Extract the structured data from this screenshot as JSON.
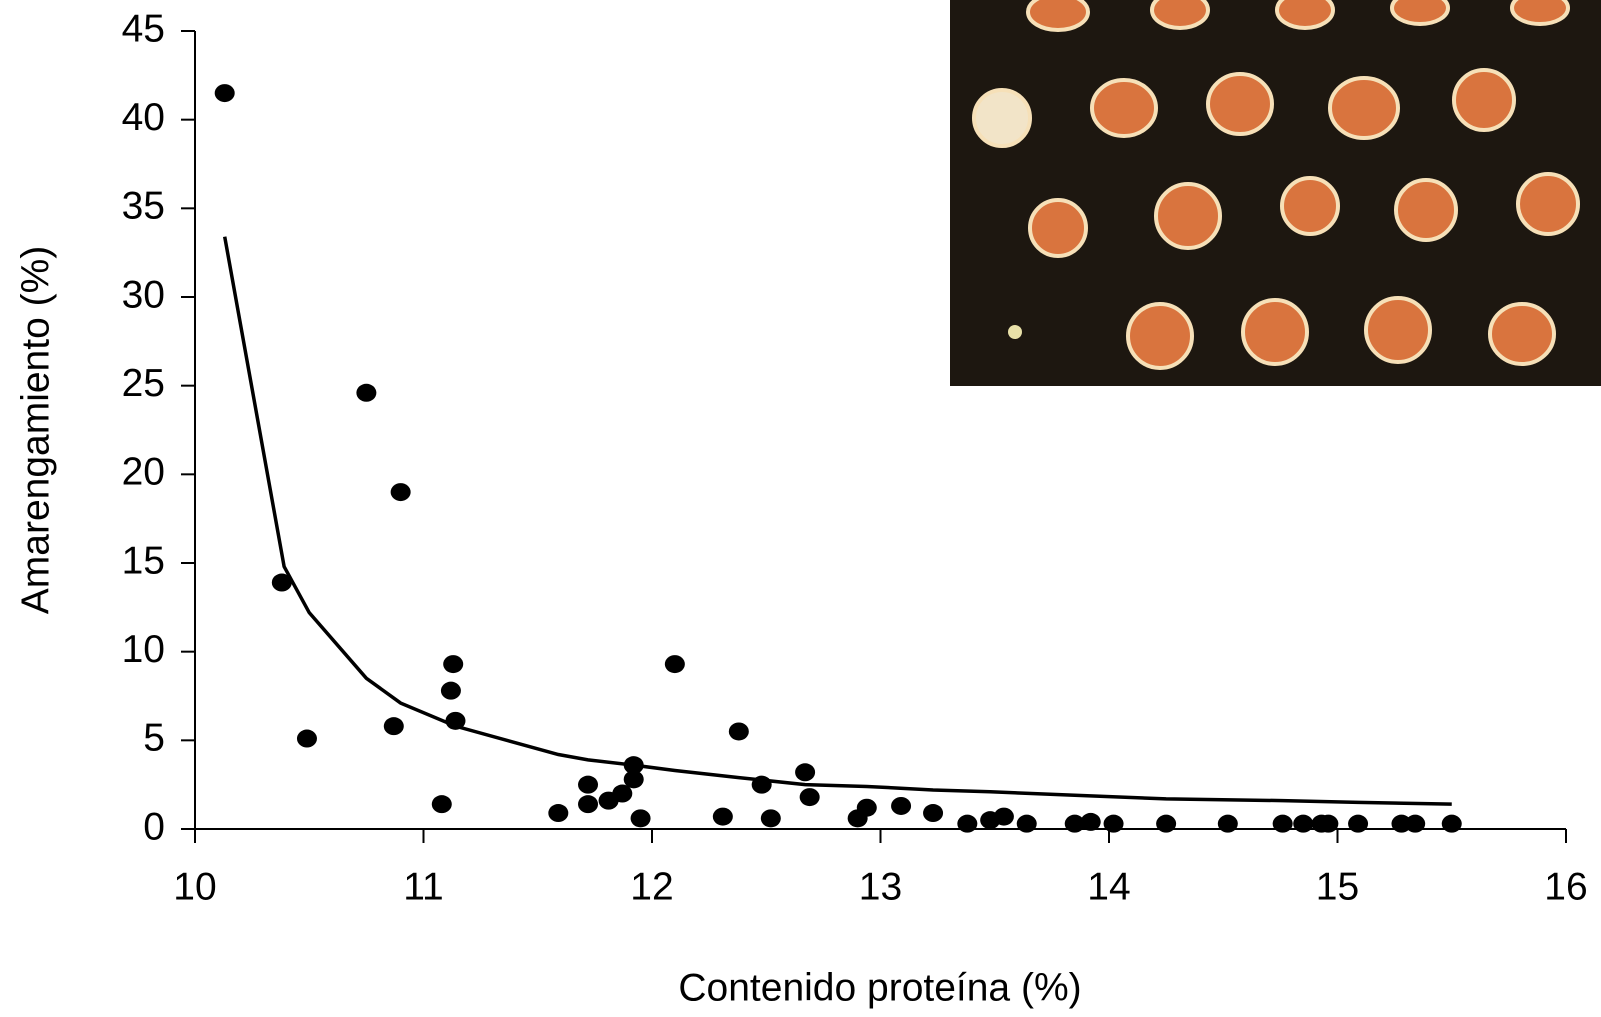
{
  "chart_data": {
    "type": "scatter",
    "xlabel": "Contenido proteína (%)",
    "ylabel": "Amarengamiento (%)",
    "xlim": [
      10,
      16
    ],
    "xticks": [
      10,
      11,
      12,
      13,
      14,
      15,
      16
    ],
    "ylim": [
      0,
      45
    ],
    "yticks": [
      0,
      5,
      10,
      15,
      20,
      25,
      30,
      35,
      40,
      45
    ],
    "series": [
      {
        "mode": "markers",
        "color": "#000000",
        "x": [
          10.13,
          10.38,
          10.49,
          10.75,
          10.9,
          10.87,
          11.08,
          11.12,
          11.13,
          11.14,
          11.59,
          11.72,
          11.72,
          11.81,
          11.87,
          11.92,
          11.92,
          11.95,
          12.1,
          12.31,
          12.38,
          12.48,
          12.52,
          12.67,
          12.69,
          12.9,
          12.94,
          13.09,
          13.23,
          13.38,
          13.48,
          13.54,
          13.64,
          13.85,
          13.92,
          14.02,
          14.25,
          14.52,
          14.76,
          14.85,
          14.93,
          14.96,
          15.09,
          15.28,
          15.34,
          15.5
        ],
        "values": [
          41.5,
          13.9,
          5.1,
          24.6,
          19.0,
          5.8,
          1.4,
          7.8,
          9.3,
          6.1,
          0.9,
          2.5,
          1.4,
          1.6,
          2.0,
          3.6,
          2.8,
          0.6,
          9.3,
          0.7,
          5.5,
          2.5,
          0.6,
          3.2,
          1.8,
          0.6,
          1.2,
          1.3,
          0.9,
          0.3,
          0.5,
          0.7,
          0.3,
          0.3,
          0.4,
          0.3,
          0.3,
          0.3,
          0.3,
          0.3,
          0.3,
          0.3,
          0.3,
          0.3,
          0.3,
          0.3
        ]
      },
      {
        "mode": "line",
        "color": "#000000",
        "x": [
          10.13,
          10.39,
          10.5,
          10.75,
          10.9,
          11.14,
          11.59,
          11.72,
          11.92,
          12.1,
          12.38,
          12.67,
          12.94,
          13.23,
          13.48,
          13.85,
          14.25,
          14.76,
          15.09,
          15.5
        ],
        "values": [
          33.4,
          14.8,
          12.2,
          8.5,
          7.1,
          5.8,
          4.2,
          3.9,
          3.6,
          3.3,
          2.9,
          2.5,
          2.4,
          2.2,
          2.1,
          1.9,
          1.7,
          1.6,
          1.5,
          1.4
        ]
      }
    ]
  }
}
